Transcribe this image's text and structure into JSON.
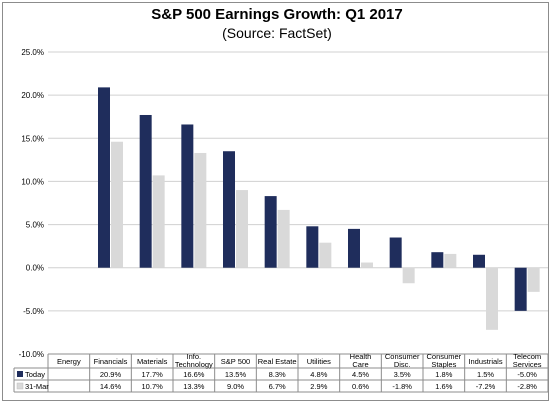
{
  "chart_data": {
    "type": "bar",
    "title": "S&P 500 Earnings Growth: Q1 2017",
    "subtitle": "(Source: FactSet)",
    "xlabel": "",
    "ylabel": "",
    "categories": [
      [
        "Energy"
      ],
      [
        "Financials"
      ],
      [
        "Materials"
      ],
      [
        "Info.",
        "Technology"
      ],
      [
        "S&P 500"
      ],
      [
        "Real Estate"
      ],
      [
        "Utilities"
      ],
      [
        "Health",
        "Care"
      ],
      [
        "Consumer",
        "Disc."
      ],
      [
        "Consumer",
        "Staples"
      ],
      [
        "Industrials"
      ],
      [
        "Telecom",
        "Services"
      ]
    ],
    "series": [
      {
        "name": "Today",
        "color": "#1f2d5c",
        "values": [
          null,
          20.9,
          17.7,
          16.6,
          13.5,
          8.3,
          4.8,
          4.5,
          3.5,
          1.8,
          1.5,
          -5.0
        ],
        "labels": [
          "",
          "20.9%",
          "17.7%",
          "16.6%",
          "13.5%",
          "8.3%",
          "4.8%",
          "4.5%",
          "3.5%",
          "1.8%",
          "1.5%",
          "-5.0%"
        ]
      },
      {
        "name": "31-Mar",
        "color": "#d9d9d9",
        "values": [
          null,
          14.6,
          10.7,
          13.3,
          9.0,
          6.7,
          2.9,
          0.6,
          -1.8,
          1.6,
          -7.2,
          -2.8
        ],
        "labels": [
          "",
          "14.6%",
          "10.7%",
          "13.3%",
          "9.0%",
          "6.7%",
          "2.9%",
          "0.6%",
          "-1.8%",
          "1.6%",
          "-7.2%",
          "-2.8%"
        ]
      }
    ],
    "ylim": [
      -10,
      25
    ],
    "yticks": [
      25,
      20,
      15,
      10,
      5,
      0,
      -5,
      -10
    ],
    "ytick_labels": [
      "25.0%",
      "20.0%",
      "15.0%",
      "10.0%",
      "5.0%",
      "0.0%",
      "-5.0%",
      "-10.0%"
    ],
    "grid": "y-major",
    "legend": "data-table"
  }
}
